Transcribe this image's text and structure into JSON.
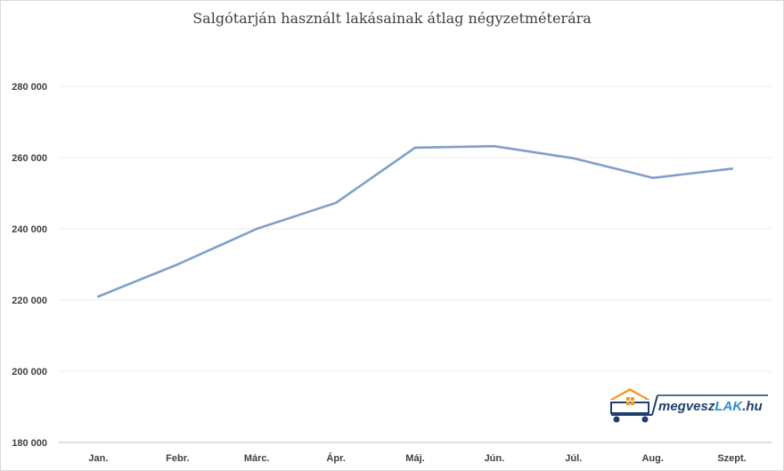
{
  "chart_data": {
    "type": "line",
    "title": "Salgótarján használt lakásainak átlag négyzetméterára",
    "categories": [
      "Jan.",
      "Febr.",
      "Márc.",
      "Ápr.",
      "Máj.",
      "Jún.",
      "Júl.",
      "Aug.",
      "Szept."
    ],
    "series": [
      {
        "values": [
          221000,
          230000,
          240000,
          247300,
          262800,
          263200,
          259800,
          254300,
          256900
        ],
        "color": "#7f9fcb"
      }
    ],
    "ylim": [
      180000,
      280000
    ],
    "yticks": [
      180000,
      200000,
      220000,
      240000,
      260000,
      280000
    ],
    "ytick_labels": [
      "180 000",
      "200 000",
      "220 000",
      "240 000",
      "260 000",
      "280 000"
    ],
    "grid": true,
    "legend": "none"
  },
  "watermark": {
    "brand_dark": "megvesz",
    "brand_accent": "LAK",
    "brand_suffix": ".hu",
    "colors": {
      "dark": "#1f3f6e",
      "accent": "#2e8bd1",
      "roof": "#f39a1e"
    }
  }
}
